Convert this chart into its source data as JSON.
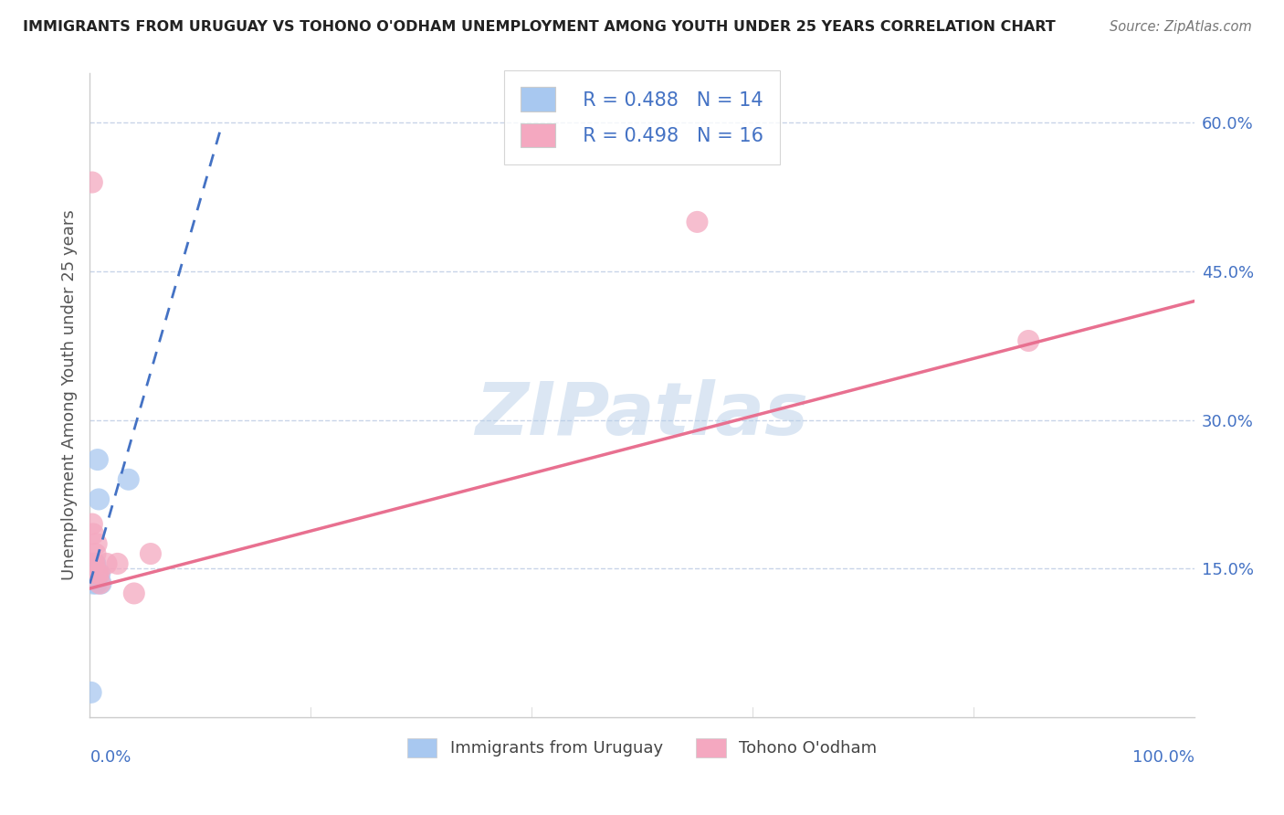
{
  "title": "IMMIGRANTS FROM URUGUAY VS TOHONO O'ODHAM UNEMPLOYMENT AMONG YOUTH UNDER 25 YEARS CORRELATION CHART",
  "source": "Source: ZipAtlas.com",
  "xlabel_bottom_left": "0.0%",
  "xlabel_bottom_right": "100.0%",
  "ylabel": "Unemployment Among Youth under 25 years",
  "ytick_labels": [
    "15.0%",
    "30.0%",
    "45.0%",
    "60.0%"
  ],
  "ytick_values": [
    0.15,
    0.3,
    0.45,
    0.6
  ],
  "xlim": [
    0.0,
    1.0
  ],
  "ylim": [
    0.0,
    0.65
  ],
  "legend_blue_R": "R = 0.488",
  "legend_blue_N": "N = 14",
  "legend_pink_R": "R = 0.498",
  "legend_pink_N": "N = 16",
  "watermark": "ZIPatlas",
  "blue_scatter_x": [
    0.002,
    0.003,
    0.003,
    0.004,
    0.004,
    0.005,
    0.005,
    0.006,
    0.007,
    0.008,
    0.009,
    0.01,
    0.035,
    0.001
  ],
  "blue_scatter_y": [
    0.145,
    0.145,
    0.135,
    0.155,
    0.145,
    0.155,
    0.145,
    0.135,
    0.26,
    0.22,
    0.145,
    0.135,
    0.24,
    0.025
  ],
  "pink_scatter_x": [
    0.002,
    0.003,
    0.004,
    0.005,
    0.006,
    0.007,
    0.008,
    0.009,
    0.002,
    0.003,
    0.025,
    0.04,
    0.055,
    0.55,
    0.85,
    0.015
  ],
  "pink_scatter_y": [
    0.195,
    0.185,
    0.155,
    0.165,
    0.175,
    0.145,
    0.145,
    0.135,
    0.54,
    0.155,
    0.155,
    0.125,
    0.165,
    0.5,
    0.38,
    0.155
  ],
  "blue_line_x": [
    0.0,
    0.12
  ],
  "blue_line_y": [
    0.135,
    0.6
  ],
  "pink_line_x": [
    0.0,
    1.0
  ],
  "pink_line_y": [
    0.13,
    0.42
  ],
  "blue_color": "#a8c8f0",
  "pink_color": "#f4a8c0",
  "blue_line_color": "#4472c4",
  "pink_line_color": "#e87090",
  "grid_color": "#c8d4e8",
  "background_color": "#ffffff"
}
